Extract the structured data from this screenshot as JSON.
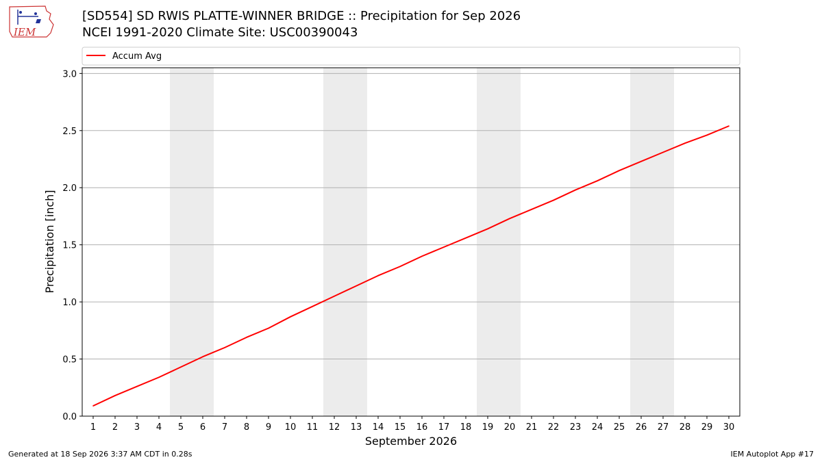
{
  "title_line1": "[SD554] SD RWIS PLATTE-WINNER BRIDGE :: Precipitation for Sep 2026",
  "title_line2": "NCEI 1991-2020 Climate Site: USC00390043",
  "footer_left": "Generated at 18 Sep 2026 3:37 AM CDT in 0.28s",
  "footer_right": "IEM Autoplot App #17",
  "logo_text": "IEM",
  "colors": {
    "line": "#ff0000",
    "weekend_band": "#ececec",
    "grid": "#b0b0b0"
  },
  "chart_data": {
    "type": "line",
    "xlabel": "September 2026",
    "ylabel": "Precipitation [inch]",
    "x": [
      1,
      2,
      3,
      4,
      5,
      6,
      7,
      8,
      9,
      10,
      11,
      12,
      13,
      14,
      15,
      16,
      17,
      18,
      19,
      20,
      21,
      22,
      23,
      24,
      25,
      26,
      27,
      28,
      29,
      30
    ],
    "ylim": [
      0,
      3.05
    ],
    "xlim": [
      0.5,
      30.5
    ],
    "yticks": [
      "0.0",
      "0.5",
      "1.0",
      "1.5",
      "2.0",
      "2.5",
      "3.0"
    ],
    "grid": "horizontal",
    "legend_position": "top",
    "weekend_days": [
      5,
      6,
      12,
      13,
      19,
      20,
      26,
      27
    ],
    "series": [
      {
        "name": "Accum Avg",
        "values": [
          0.09,
          0.18,
          0.26,
          0.34,
          0.43,
          0.52,
          0.6,
          0.69,
          0.77,
          0.87,
          0.96,
          1.05,
          1.14,
          1.23,
          1.31,
          1.4,
          1.48,
          1.56,
          1.64,
          1.73,
          1.81,
          1.89,
          1.98,
          2.06,
          2.15,
          2.23,
          2.31,
          2.39,
          2.46,
          2.54
        ]
      }
    ]
  }
}
